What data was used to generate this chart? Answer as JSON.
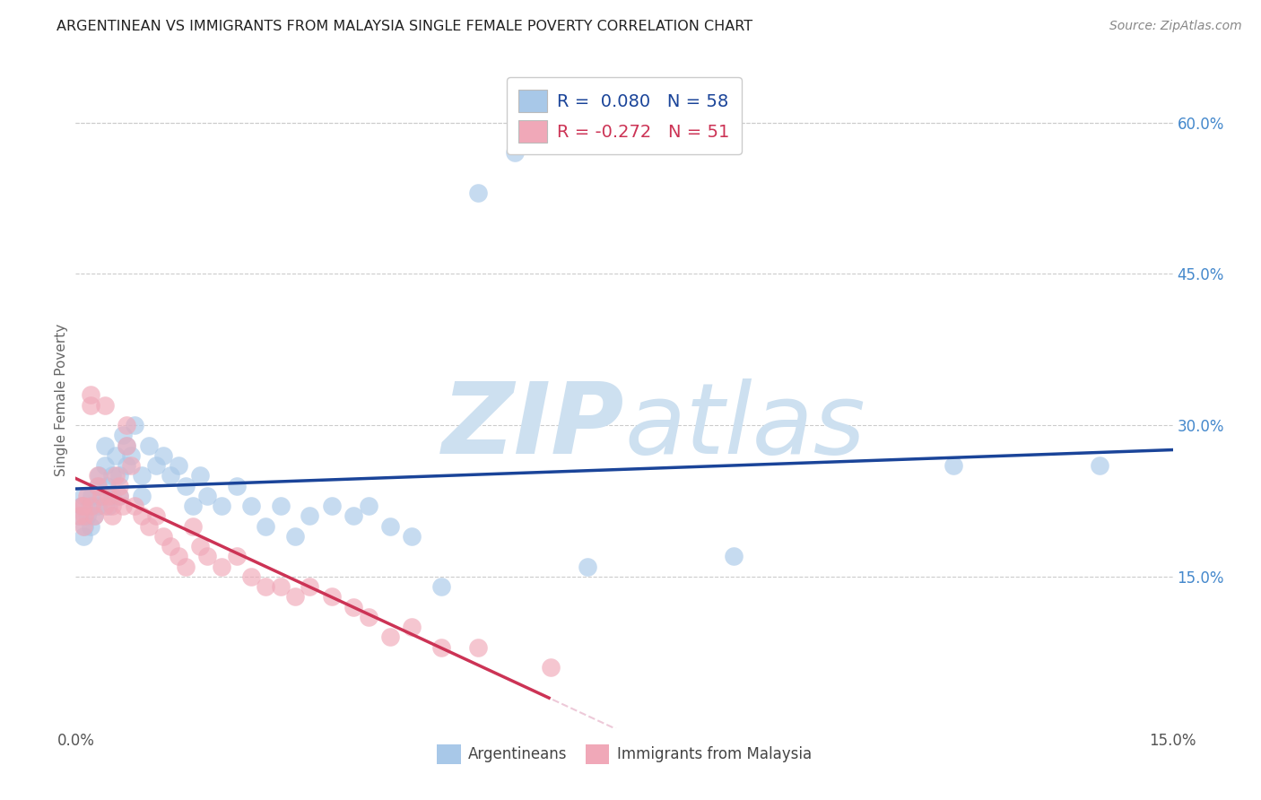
{
  "title": "ARGENTINEAN VS IMMIGRANTS FROM MALAYSIA SINGLE FEMALE POVERTY CORRELATION CHART",
  "source": "Source: ZipAtlas.com",
  "ylabel_label": "Single Female Poverty",
  "xlim": [
    0.0,
    0.15
  ],
  "ylim": [
    0.0,
    0.65
  ],
  "R_blue": 0.08,
  "N_blue": 58,
  "R_pink": -0.272,
  "N_pink": 51,
  "color_blue": "#a8c8e8",
  "color_blue_line": "#1a4499",
  "color_pink": "#f0a8b8",
  "color_pink_line": "#cc3355",
  "color_pink_dash": "#e8b8cc",
  "watermark_color": "#cde0f0",
  "grid_color": "#cccccc",
  "title_color": "#222222",
  "source_color": "#888888",
  "right_axis_color": "#4488cc",
  "ytick_right": [
    0.15,
    0.3,
    0.45,
    0.6
  ],
  "ytick_right_labels": [
    "15.0%",
    "30.0%",
    "45.0%",
    "60.0%"
  ],
  "blue_x": [
    0.0005,
    0.0008,
    0.001,
    0.001,
    0.0012,
    0.0015,
    0.002,
    0.002,
    0.0022,
    0.0025,
    0.003,
    0.003,
    0.0032,
    0.0035,
    0.004,
    0.004,
    0.0042,
    0.0045,
    0.005,
    0.005,
    0.0055,
    0.006,
    0.006,
    0.0065,
    0.007,
    0.007,
    0.0075,
    0.008,
    0.009,
    0.009,
    0.01,
    0.011,
    0.012,
    0.013,
    0.014,
    0.015,
    0.016,
    0.017,
    0.018,
    0.02,
    0.022,
    0.024,
    0.026,
    0.028,
    0.03,
    0.032,
    0.035,
    0.038,
    0.04,
    0.043,
    0.046,
    0.05,
    0.055,
    0.06,
    0.07,
    0.09,
    0.12,
    0.14
  ],
  "blue_y": [
    0.21,
    0.22,
    0.19,
    0.23,
    0.2,
    0.21,
    0.22,
    0.2,
    0.23,
    0.21,
    0.24,
    0.22,
    0.25,
    0.23,
    0.26,
    0.28,
    0.24,
    0.22,
    0.25,
    0.23,
    0.27,
    0.25,
    0.23,
    0.29,
    0.28,
    0.26,
    0.27,
    0.3,
    0.25,
    0.23,
    0.28,
    0.26,
    0.27,
    0.25,
    0.26,
    0.24,
    0.22,
    0.25,
    0.23,
    0.22,
    0.24,
    0.22,
    0.2,
    0.22,
    0.19,
    0.21,
    0.22,
    0.21,
    0.22,
    0.2,
    0.19,
    0.14,
    0.53,
    0.57,
    0.16,
    0.17,
    0.26,
    0.26
  ],
  "pink_x": [
    0.0005,
    0.0008,
    0.001,
    0.001,
    0.0012,
    0.0015,
    0.002,
    0.002,
    0.0022,
    0.0025,
    0.003,
    0.003,
    0.0035,
    0.004,
    0.004,
    0.0045,
    0.005,
    0.005,
    0.0055,
    0.006,
    0.006,
    0.0065,
    0.007,
    0.007,
    0.0075,
    0.008,
    0.009,
    0.01,
    0.011,
    0.012,
    0.013,
    0.014,
    0.015,
    0.016,
    0.017,
    0.018,
    0.02,
    0.022,
    0.024,
    0.026,
    0.028,
    0.03,
    0.032,
    0.035,
    0.038,
    0.04,
    0.043,
    0.046,
    0.05,
    0.055,
    0.065
  ],
  "pink_y": [
    0.21,
    0.22,
    0.2,
    0.22,
    0.21,
    0.23,
    0.33,
    0.32,
    0.22,
    0.21,
    0.25,
    0.24,
    0.23,
    0.32,
    0.22,
    0.23,
    0.22,
    0.21,
    0.25,
    0.23,
    0.24,
    0.22,
    0.3,
    0.28,
    0.26,
    0.22,
    0.21,
    0.2,
    0.21,
    0.19,
    0.18,
    0.17,
    0.16,
    0.2,
    0.18,
    0.17,
    0.16,
    0.17,
    0.15,
    0.14,
    0.14,
    0.13,
    0.14,
    0.13,
    0.12,
    0.11,
    0.09,
    0.1,
    0.08,
    0.08,
    0.06
  ]
}
